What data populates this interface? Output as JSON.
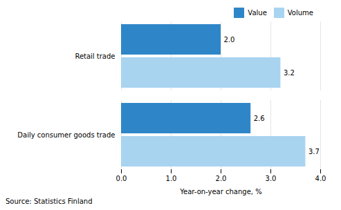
{
  "chart_data": {
    "type": "bar",
    "orientation": "horizontal",
    "categories": [
      "Daily consumer goods trade",
      "Retail trade"
    ],
    "series": [
      {
        "name": "Value",
        "color": "#2E86C8",
        "values": [
          2.6,
          2.0
        ],
        "value_labels": [
          "2.6",
          "2.0"
        ]
      },
      {
        "name": "Volume",
        "color": "#A8D4F0",
        "values": [
          3.7,
          3.2
        ],
        "value_labels": [
          "3.7",
          "3.2"
        ]
      }
    ],
    "xlabel": "Year-on-year change, %",
    "xlim": [
      0,
      4
    ],
    "xticks": [
      0,
      1,
      2,
      3,
      4
    ],
    "grid": true,
    "legend": "upper right",
    "data_labels": true,
    "caption": "Source: Statistics Finland"
  }
}
